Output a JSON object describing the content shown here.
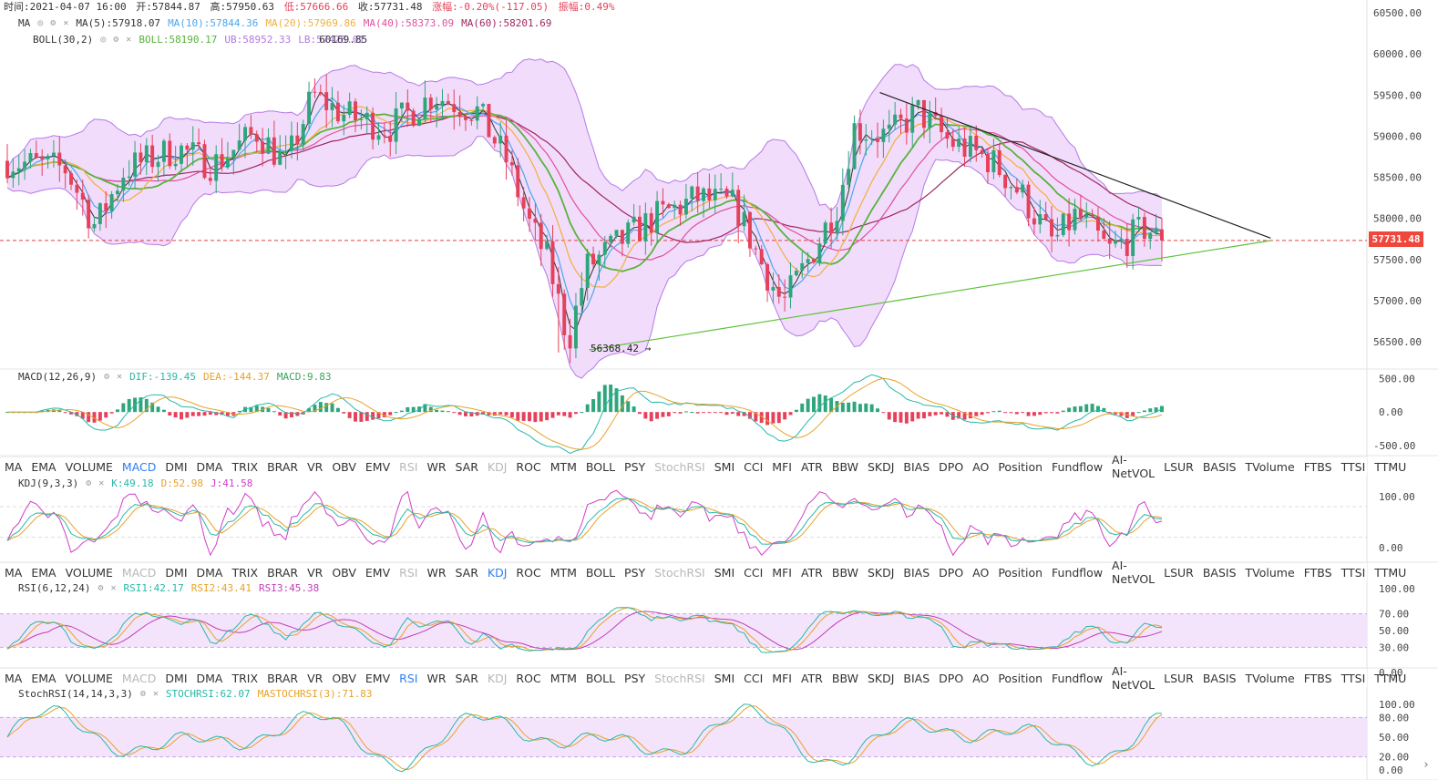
{
  "header": {
    "time": "时间:2021-04-07 16:00",
    "open": "开:57844.87",
    "high": "高:57950.63",
    "low": "低:57666.66",
    "close": "收:57731.48",
    "change": "涨幅:-0.20%(-117.05)",
    "amplitude": "振幅:0.49%"
  },
  "legends": {
    "ma": {
      "name": "MA",
      "items": [
        {
          "text": "MA(5):57918.07",
          "color": "#333333"
        },
        {
          "text": "MA(10):57844.36",
          "color": "#4aa6f0"
        },
        {
          "text": "MA(20):57969.86",
          "color": "#f0b03a"
        },
        {
          "text": "MA(40):58373.09",
          "color": "#e0509c"
        },
        {
          "text": "MA(60):58201.69",
          "color": "#a0245e"
        }
      ]
    },
    "boll": {
      "name": "BOLL(30,2)",
      "items": [
        {
          "text": "BOLL:58190.17",
          "color": "#58b33c"
        },
        {
          "text": "UB:58952.33",
          "color": "#b07ae0"
        },
        {
          "text": "LB:57428.01",
          "color": "#b07ae0"
        }
      ],
      "overlap_text": "60169.85"
    },
    "macd": {
      "name": "MACD(12,26,9)",
      "items": [
        {
          "text": "DIF:-139.45",
          "color": "#28b8a8"
        },
        {
          "text": "DEA:-144.37",
          "color": "#e8a22a"
        },
        {
          "text": "MACD:9.83",
          "color": "#3ba55c"
        }
      ]
    },
    "kdj": {
      "name": "KDJ(9,3,3)",
      "items": [
        {
          "text": "K:49.18",
          "color": "#28b8a8"
        },
        {
          "text": "D:52.98",
          "color": "#e8a22a"
        },
        {
          "text": "J:41.58",
          "color": "#d03ec8"
        }
      ]
    },
    "rsi": {
      "name": "RSI(6,12,24)",
      "items": [
        {
          "text": "RSI1:42.17",
          "color": "#28b8a8"
        },
        {
          "text": "RSI2:43.41",
          "color": "#e8a22a"
        },
        {
          "text": "RSI3:45.38",
          "color": "#c03eb8"
        }
      ]
    },
    "stochrsi": {
      "name": "StochRSI(14,14,3,3)",
      "items": [
        {
          "text": "STOCHRSI:62.07",
          "color": "#28b8a8"
        },
        {
          "text": "MASTOCHRSI(3):71.83",
          "color": "#e8a22a"
        }
      ]
    }
  },
  "toggle_icons": [
    "eye-icon",
    "gear-icon",
    "close-icon"
  ],
  "indicator_tabs": [
    "MA",
    "EMA",
    "VOLUME",
    "MACD",
    "DMI",
    "DMA",
    "TRIX",
    "BRAR",
    "VR",
    "OBV",
    "EMV",
    "RSI",
    "WR",
    "SAR",
    "KDJ",
    "ROC",
    "MTM",
    "BOLL",
    "PSY",
    "StochRSI",
    "SMI",
    "CCI",
    "MFI",
    "ATR",
    "BBW",
    "SKDJ",
    "BIAS",
    "DPO",
    "AO",
    "Position",
    "Fundflow",
    "AI-NetVOL",
    "LSUR",
    "BASIS",
    "TVolume",
    "FTBS",
    "TTSI",
    "TTMU"
  ],
  "tab_rows": [
    {
      "active": "MACD",
      "disabled": [
        "RSI",
        "KDJ",
        "StochRSI"
      ]
    },
    {
      "active": "KDJ",
      "disabled": [
        "MACD",
        "RSI",
        "StochRSI"
      ]
    },
    {
      "active": "RSI",
      "disabled": [
        "MACD",
        "KDJ",
        "StochRSI"
      ]
    }
  ],
  "current_price_label": "57731.48",
  "low_marker_label": "56368.42",
  "colors": {
    "up": "#2ea57a",
    "down": "#e6415a",
    "boll_fill": "#f1dcfb",
    "boll_band": "#b57ae6",
    "trend_upper": "#222222",
    "trend_lower": "#5cc23a",
    "price_line": "#e04040",
    "rsi_band": "#f4e4fb"
  },
  "chart_data": [
    {
      "type": "candlestick",
      "title": "",
      "y_ticks": [
        60500,
        60000,
        59500,
        59000,
        58500,
        58000,
        57500,
        57000,
        56500
      ],
      "y_tick_labels": [
        "60500.00",
        "60000.00",
        "59500.00",
        "59000.00",
        "58500.00",
        "58000.00",
        "57500.00",
        "57000.00",
        "56500.00"
      ],
      "ylim": [
        56000,
        60560
      ],
      "candle_count": 200,
      "ohlc_keypoints": [
        [
          0,
          58700
        ],
        [
          20,
          58600
        ],
        [
          30,
          57900
        ],
        [
          40,
          58600
        ],
        [
          58,
          58850
        ],
        [
          70,
          58650
        ],
        [
          85,
          59050
        ],
        [
          95,
          58650
        ],
        [
          104,
          59500
        ],
        [
          115,
          59250
        ],
        [
          130,
          59100
        ],
        [
          145,
          59500
        ],
        [
          160,
          59300
        ],
        [
          170,
          58700
        ],
        [
          178,
          57900
        ],
        [
          184,
          57500
        ],
        [
          191,
          56500
        ],
        [
          197,
          57400
        ],
        [
          208,
          57700
        ],
        [
          220,
          58000
        ],
        [
          235,
          58250
        ],
        [
          248,
          58150
        ],
        [
          256,
          57500
        ],
        [
          264,
          56950
        ],
        [
          272,
          57450
        ],
        [
          283,
          58200
        ],
        [
          288,
          59100
        ],
        [
          300,
          59000
        ],
        [
          310,
          59300
        ],
        [
          320,
          58950
        ],
        [
          335,
          58700
        ],
        [
          345,
          58300
        ],
        [
          356,
          57700
        ],
        [
          364,
          58050
        ],
        [
          375,
          57600
        ],
        [
          388,
          57900
        ],
        [
          393,
          57650
        ]
      ],
      "current_price": 57731.48,
      "low_marker": 56368.42,
      "indicators_on_chart": [
        "MA5",
        "MA10",
        "MA20",
        "MA40",
        "MA60",
        "BOLL",
        "UB",
        "LB"
      ],
      "trendlines": [
        {
          "name": "upper",
          "from": [
            297,
            59530
          ],
          "to": [
            430,
            57760
          ]
        },
        {
          "name": "lower",
          "from": [
            198,
            56400
          ],
          "to": [
            430,
            57730
          ]
        }
      ]
    },
    {
      "type": "bar",
      "title": "MACD(12,26,9)",
      "y_tick_labels": [
        "500.00",
        "0.00",
        "-500.00"
      ],
      "ylim": [
        -650,
        600
      ],
      "series": [
        {
          "name": "DIF",
          "last": -139.45
        },
        {
          "name": "DEA",
          "last": -144.37
        },
        {
          "name": "MACD",
          "last": 9.83
        }
      ]
    },
    {
      "type": "line",
      "title": "KDJ(9,3,3)",
      "y_tick_labels": [
        "100.00",
        "0.00"
      ],
      "ylim": [
        -20,
        130
      ],
      "series": [
        {
          "name": "K",
          "last": 49.18
        },
        {
          "name": "D",
          "last": 52.98
        },
        {
          "name": "J",
          "last": 41.58
        }
      ]
    },
    {
      "type": "line",
      "title": "RSI(6,12,24)",
      "y_tick_labels": [
        "100.00",
        "70.00",
        "50.00",
        "30.00",
        "0.00"
      ],
      "ylim": [
        0,
        100
      ],
      "series": [
        {
          "name": "RSI1",
          "last": 42.17
        },
        {
          "name": "RSI2",
          "last": 43.41
        },
        {
          "name": "RSI3",
          "last": 45.38
        }
      ]
    },
    {
      "type": "line",
      "title": "StochRSI(14,14,3,3)",
      "y_tick_labels": [
        "100.00",
        "80.00",
        "50.00",
        "20.00",
        "0.00"
      ],
      "ylim": [
        0,
        100
      ],
      "series": [
        {
          "name": "STOCHRSI",
          "last": 62.07
        },
        {
          "name": "MASTOCHRSI(3)",
          "last": 71.83
        }
      ]
    }
  ]
}
